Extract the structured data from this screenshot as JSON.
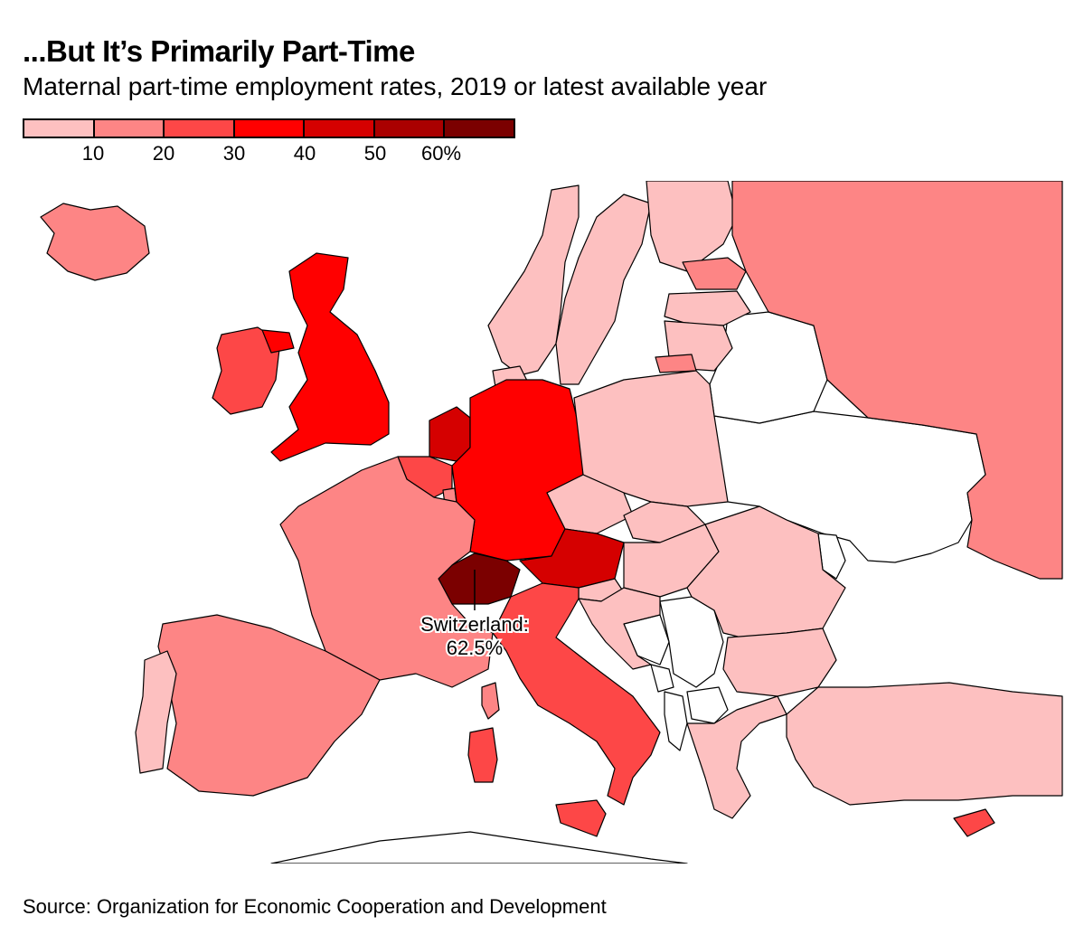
{
  "header": {
    "title": "...But It’s Primarily Part-Time",
    "subtitle": "Maternal part-time employment rates, 2019 or latest available year"
  },
  "legend": {
    "bins": [
      {
        "range": "0-10",
        "color": "#fdc0c0"
      },
      {
        "range": "10-20",
        "color": "#fd8585"
      },
      {
        "range": "20-30",
        "color": "#fd4747"
      },
      {
        "range": "30-40",
        "color": "#ff0000"
      },
      {
        "range": "40-50",
        "color": "#d50000"
      },
      {
        "range": "50-60",
        "color": "#aa0000"
      },
      {
        "range": "60+",
        "color": "#7b0000"
      }
    ],
    "ticks": [
      "10",
      "20",
      "30",
      "40",
      "50",
      "60%"
    ]
  },
  "map": {
    "callout_country": "Switzerland:",
    "callout_value": "62.5%",
    "no_data_color": "#ffffff",
    "countries": [
      {
        "id": "iceland",
        "color": "#fd8585"
      },
      {
        "id": "ireland",
        "color": "#fd4747"
      },
      {
        "id": "united-kingdom",
        "color": "#ff0000"
      },
      {
        "id": "norway",
        "color": "#fdc0c0"
      },
      {
        "id": "sweden",
        "color": "#fdc0c0"
      },
      {
        "id": "finland",
        "color": "#fdc0c0"
      },
      {
        "id": "russia",
        "color": "#fd8585"
      },
      {
        "id": "estonia",
        "color": "#fd8585"
      },
      {
        "id": "latvia",
        "color": "#fdc0c0"
      },
      {
        "id": "lithuania",
        "color": "#fdc0c0"
      },
      {
        "id": "kaliningrad",
        "color": "#fd8585"
      },
      {
        "id": "denmark",
        "color": "#fdc0c0"
      },
      {
        "id": "netherlands",
        "color": "#d50000"
      },
      {
        "id": "belgium",
        "color": "#fd4747"
      },
      {
        "id": "luxembourg",
        "color": "#fd8585"
      },
      {
        "id": "germany",
        "color": "#ff0000"
      },
      {
        "id": "poland",
        "color": "#fdc0c0"
      },
      {
        "id": "czechia",
        "color": "#fdc0c0"
      },
      {
        "id": "slovakia",
        "color": "#fdc0c0"
      },
      {
        "id": "hungary",
        "color": "#fdc0c0"
      },
      {
        "id": "austria",
        "color": "#d50000"
      },
      {
        "id": "switzerland",
        "color": "#7b0000"
      },
      {
        "id": "france",
        "color": "#fd8585"
      },
      {
        "id": "spain",
        "color": "#fd8585"
      },
      {
        "id": "portugal",
        "color": "#fdc0c0"
      },
      {
        "id": "italy",
        "color": "#fd4747"
      },
      {
        "id": "sicily",
        "color": "#fd4747"
      },
      {
        "id": "sardinia",
        "color": "#fd4747"
      },
      {
        "id": "corsica",
        "color": "#fd8585"
      },
      {
        "id": "slovenia",
        "color": "#fdc0c0"
      },
      {
        "id": "croatia",
        "color": "#fdc0c0"
      },
      {
        "id": "romania",
        "color": "#fdc0c0"
      },
      {
        "id": "bulgaria",
        "color": "#fdc0c0"
      },
      {
        "id": "greece",
        "color": "#fdc0c0"
      },
      {
        "id": "turkey",
        "color": "#fdc0c0"
      },
      {
        "id": "cyprus",
        "color": "#fd4747"
      },
      {
        "id": "belarus",
        "color": "#ffffff"
      },
      {
        "id": "ukraine",
        "color": "#ffffff"
      },
      {
        "id": "moldova",
        "color": "#ffffff"
      },
      {
        "id": "serbia",
        "color": "#ffffff"
      },
      {
        "id": "bosnia",
        "color": "#ffffff"
      },
      {
        "id": "montenegro",
        "color": "#ffffff"
      },
      {
        "id": "albania",
        "color": "#ffffff"
      },
      {
        "id": "north-macedonia",
        "color": "#ffffff"
      },
      {
        "id": "africa",
        "color": "#ffffff"
      }
    ]
  },
  "footer": {
    "source": "Source: Organization for Economic Cooperation and Development"
  }
}
